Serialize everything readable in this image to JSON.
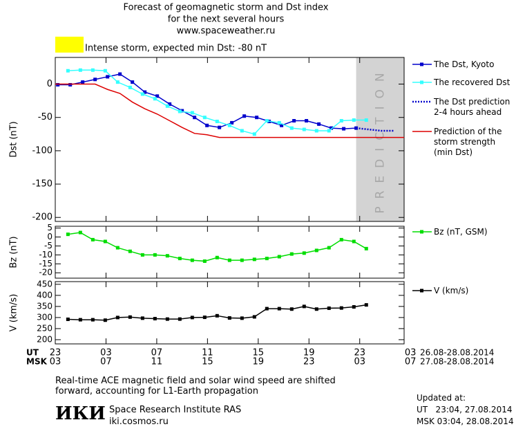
{
  "header": {
    "title": "Forecast of geomagnetic storm and Dst index",
    "subtitle": "for the next several hours",
    "url": "www.spaceweather.ru"
  },
  "time_axis": {
    "xlim": [
      0,
      27.5
    ],
    "ut_label": "UT",
    "msk_label": "MSK",
    "ut_range": "26.08-28.08.2014",
    "msk_range": "27.08-28.08.2014",
    "ut_ticks": [
      {
        "value": 0,
        "label": "23"
      },
      {
        "value": 4,
        "label": "03"
      },
      {
        "value": 8,
        "label": "07"
      },
      {
        "value": 12,
        "label": "11"
      },
      {
        "value": 16,
        "label": "15"
      },
      {
        "value": 20,
        "label": "19"
      },
      {
        "value": 24,
        "label": "23"
      },
      {
        "value": 28,
        "label": "03"
      }
    ],
    "msk_ticks": [
      {
        "value": 0,
        "label": "03"
      },
      {
        "value": 4,
        "label": "07"
      },
      {
        "value": 8,
        "label": "11"
      },
      {
        "value": 12,
        "label": "15"
      },
      {
        "value": 16,
        "label": "19"
      },
      {
        "value": 20,
        "label": "23"
      },
      {
        "value": 24,
        "label": "03"
      },
      {
        "value": 28,
        "label": "07"
      }
    ]
  },
  "chart_data": [
    {
      "type": "line",
      "ylabel": "Dst (nT)",
      "ylim": [
        -206,
        40
      ],
      "yticks": [
        0,
        -50,
        -100,
        -150,
        -200
      ],
      "annotation": "Intense storm, expected min Dst: -80 nT",
      "annotation_color": "#ffff00",
      "prediction_label": "PREDICTION",
      "prediction_color": "#d3d3d3",
      "series": [
        {
          "name": "The Dst, Kyoto",
          "color": "#0000cc",
          "markers": true,
          "style": "solid",
          "x": [
            0.2,
            1.18,
            2.16,
            3.14,
            4.12,
            5.1,
            6.08,
            7.06,
            8.04,
            9.02,
            10.0,
            10.98,
            11.96,
            12.94,
            13.92,
            14.9,
            15.88,
            16.86,
            17.84,
            18.82,
            19.8,
            20.78,
            21.76,
            22.74,
            23.72
          ],
          "values": [
            -1,
            -1,
            3,
            7,
            11,
            15,
            3,
            -12,
            -18,
            -30,
            -40,
            -50,
            -62,
            -65,
            -58,
            -48,
            -50,
            -56,
            -62,
            -55,
            -55,
            -60,
            -66,
            -67,
            -66
          ]
        },
        {
          "name": "The recovered Dst",
          "color": "#33ffff",
          "markers": true,
          "style": "solid",
          "x": [
            1.0,
            1.98,
            2.96,
            3.94,
            4.92,
            5.9,
            6.88,
            7.86,
            8.84,
            9.82,
            10.8,
            11.78,
            12.76,
            13.74,
            14.72,
            15.7,
            16.68,
            17.66,
            18.64,
            19.62,
            20.6,
            21.58,
            22.56,
            23.54,
            24.52
          ],
          "values": [
            20,
            21,
            21,
            20,
            3,
            -5,
            -15,
            -22,
            -33,
            -41,
            -43,
            -50,
            -56,
            -62,
            -70,
            -75,
            -55,
            -58,
            -66,
            -68,
            -70,
            -70,
            -55,
            -54,
            -54
          ]
        },
        {
          "name": "The Dst prediction\n2-4 hours ahead",
          "color": "#0000cc",
          "markers": false,
          "style": "dotted",
          "prediction": true,
          "x": [
            23.72,
            24.7,
            25.68,
            26.66
          ],
          "values": [
            -66,
            -68,
            -70,
            -70
          ]
        },
        {
          "name": "Prediction of the\nstorm strength\n(min Dst)",
          "color": "#dd0000",
          "markers": false,
          "style": "solid",
          "x": [
            0,
            3.14,
            4.12,
            5.1,
            6.08,
            7.06,
            8.04,
            9.02,
            10.0,
            10.98,
            11.96,
            12.94,
            27.5
          ],
          "values": [
            0,
            0,
            -8,
            -14,
            -27,
            -37,
            -45,
            -55,
            -65,
            -74,
            -76,
            -80,
            -80
          ]
        }
      ]
    },
    {
      "type": "line",
      "ylabel": "Bz (nT)",
      "ylim": [
        -23,
        6
      ],
      "yticks": [
        5,
        0,
        -5,
        -10,
        -15,
        -20
      ],
      "series": [
        {
          "name": "Bz (nT, GSM)",
          "color": "#00dd00",
          "markers": true,
          "style": "solid",
          "x": [
            1.0,
            1.98,
            2.96,
            3.94,
            4.92,
            5.9,
            6.88,
            7.86,
            8.84,
            9.82,
            10.8,
            11.78,
            12.76,
            13.74,
            14.72,
            15.7,
            16.68,
            17.66,
            18.64,
            19.62,
            20.6,
            21.58,
            22.56,
            23.54,
            24.52
          ],
          "values": [
            1.5,
            2.5,
            -1.5,
            -2.5,
            -6,
            -8,
            -10,
            -10,
            -10.5,
            -12,
            -13,
            -13.5,
            -11.5,
            -13,
            -13,
            -12.5,
            -12,
            -11,
            -9.5,
            -9,
            -7.5,
            -6,
            -1.5,
            -2.5,
            -6.5
          ]
        }
      ]
    },
    {
      "type": "line",
      "ylabel": "V (km/s)",
      "ylim": [
        181,
        462
      ],
      "yticks": [
        450,
        400,
        350,
        300,
        250,
        200
      ],
      "series": [
        {
          "name": "V (km/s)",
          "color": "#000000",
          "markers": true,
          "style": "solid",
          "x": [
            1.0,
            1.98,
            2.96,
            3.94,
            4.92,
            5.9,
            6.88,
            7.86,
            8.84,
            9.82,
            10.8,
            11.78,
            12.76,
            13.74,
            14.72,
            15.7,
            16.68,
            17.66,
            18.64,
            19.62,
            20.6,
            21.58,
            22.56,
            23.54,
            24.52
          ],
          "values": [
            292,
            290,
            290,
            288,
            300,
            302,
            297,
            295,
            293,
            293,
            300,
            301,
            308,
            298,
            297,
            303,
            340,
            340,
            338,
            350,
            338,
            342,
            343,
            348,
            357
          ]
        }
      ]
    }
  ],
  "footer": {
    "note": "Real-time ACE magnetic field and solar wind speed are shifted\nforward, accounting for L1-Earth propagation",
    "logo": "ИКИ",
    "institute": "Space Research Institute RAS",
    "site": "iki.cosmos.ru",
    "updated": "Updated at:",
    "updated_ut": "UT   23:04, 27.08.2014",
    "updated_msk": "MSK 03:04, 28.08.2014"
  }
}
